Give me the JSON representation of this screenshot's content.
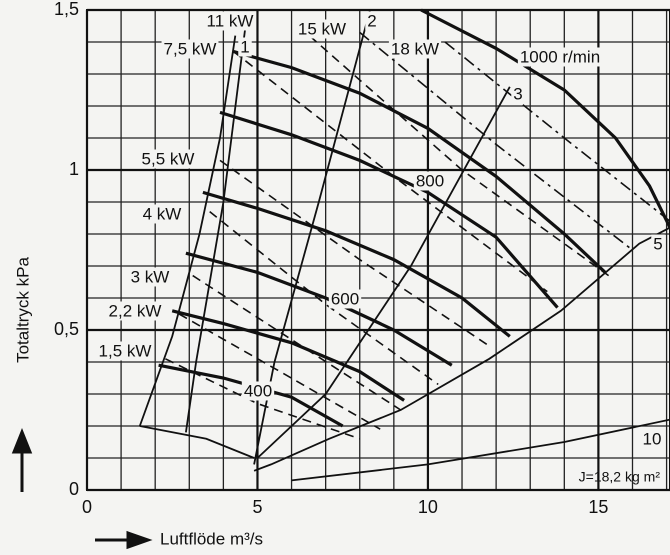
{
  "chart_data": {
    "type": "line",
    "xlabel": "Luftflöde m³/s",
    "ylabel": "Totaltryck kPa",
    "xlim": [
      0,
      17.1
    ],
    "ylim": [
      0,
      1.5
    ],
    "xticks": [
      0,
      5,
      10,
      15
    ],
    "yticks": [
      0,
      {
        "value": 0.5,
        "label": "0,5"
      },
      1,
      {
        "value": 1.5,
        "label": "1,5"
      }
    ],
    "xgrid": [
      1,
      2,
      3,
      4,
      5,
      6,
      7,
      8,
      9,
      10,
      11,
      12,
      13,
      14,
      15,
      16,
      17
    ],
    "ygrid": [
      0.1,
      0.2,
      0.3,
      0.4,
      0.5,
      0.6,
      0.7,
      0.8,
      0.9,
      1,
      1.1,
      1.2,
      1.3,
      1.4
    ],
    "annotation": "J=18,2 kg m²",
    "series": [
      {
        "label": "1000 r/min",
        "style": "thick",
        "x": [
          9.8,
          12,
          14,
          15.5,
          16.5,
          17.1
        ],
        "y": [
          1.5,
          1.38,
          1.25,
          1.1,
          0.95,
          0.82
        ]
      },
      {
        "style": "thick",
        "x": [
          4.3,
          6,
          8,
          10,
          12,
          14,
          15.2
        ],
        "y": [
          1.37,
          1.32,
          1.24,
          1.13,
          0.98,
          0.8,
          0.68
        ]
      },
      {
        "label": "800",
        "style": "thick",
        "x": [
          3.9,
          6,
          8,
          10,
          12,
          13.8
        ],
        "y": [
          1.18,
          1.11,
          1.03,
          0.93,
          0.79,
          0.57
        ]
      },
      {
        "style": "thick",
        "x": [
          3.4,
          5,
          7,
          9,
          11,
          12.4
        ],
        "y": [
          0.93,
          0.88,
          0.81,
          0.72,
          0.6,
          0.48
        ]
      },
      {
        "label": "600",
        "style": "thick",
        "x": [
          2.9,
          5,
          7,
          9,
          10.7
        ],
        "y": [
          0.74,
          0.68,
          0.6,
          0.5,
          0.39
        ]
      },
      {
        "style": "thick",
        "x": [
          2.5,
          4,
          6,
          8,
          9.3
        ],
        "y": [
          0.56,
          0.52,
          0.46,
          0.37,
          0.28
        ]
      },
      {
        "label": "400",
        "style": "thick",
        "x": [
          2.1,
          4,
          6,
          7.5
        ],
        "y": [
          0.39,
          0.35,
          0.29,
          0.2
        ]
      },
      {
        "style": "thin",
        "x": [
          1.55,
          2.5,
          3.3,
          3.9,
          4.35
        ],
        "y": [
          0.2,
          0.48,
          0.8,
          1.1,
          1.42
        ]
      },
      {
        "style": "thin",
        "x": [
          1.55,
          3.5,
          4.9
        ],
        "y": [
          0.2,
          0.16,
          0.1
        ]
      },
      {
        "label": "1",
        "style": "thin",
        "x": [
          4.65,
          4,
          3.2,
          2.9
        ],
        "y": [
          1.45,
          0.9,
          0.4,
          0.18
        ]
      },
      {
        "label": "2",
        "style": "thin",
        "x": [
          8.3,
          6.8,
          5.5,
          4.9
        ],
        "y": [
          1.5,
          0.9,
          0.4,
          0.08
        ]
      },
      {
        "label": "3",
        "style": "thin",
        "x": [
          12.4,
          9.5,
          7,
          5
        ],
        "y": [
          1.26,
          0.7,
          0.3,
          0.1
        ]
      },
      {
        "label": "5",
        "style": "thin",
        "x": [
          17.1,
          16.2,
          13.9,
          11.8,
          9.2,
          7.1,
          5.4,
          4.9
        ],
        "y": [
          0.82,
          0.77,
          0.56,
          0.41,
          0.25,
          0.16,
          0.08,
          0.06
        ]
      },
      {
        "label": "10",
        "style": "thin",
        "x": [
          6,
          10,
          14,
          17.1
        ],
        "y": [
          0.03,
          0.08,
          0.15,
          0.22
        ]
      },
      {
        "label": "1,5 kW",
        "style": "dashed",
        "x": [
          2.3,
          5,
          8
        ],
        "y": [
          0.41,
          0.27,
          0.16
        ]
      },
      {
        "label": "2,2 kW",
        "style": "dashed",
        "x": [
          2.7,
          5.5,
          8.6
        ],
        "y": [
          0.55,
          0.38,
          0.19
        ]
      },
      {
        "label": "3 kW",
        "style": "dashed",
        "x": [
          3.1,
          6,
          9.2
        ],
        "y": [
          0.67,
          0.47,
          0.25
        ]
      },
      {
        "label": "4 kW",
        "style": "dashed",
        "x": [
          3.6,
          7,
          10.3
        ],
        "y": [
          0.87,
          0.58,
          0.33
        ]
      },
      {
        "label": "5,5 kW",
        "style": "dashed",
        "x": [
          3.9,
          8,
          11.8
        ],
        "y": [
          1.03,
          0.72,
          0.45
        ]
      },
      {
        "label": "7,5 kW",
        "style": "dashed",
        "x": [
          4.3,
          9,
          13.5
        ],
        "y": [
          1.37,
          0.98,
          0.62
        ]
      },
      {
        "label": "11 kW",
        "style": "dashed",
        "x": [
          6.2,
          11,
          15.3
        ],
        "y": [
          1.45,
          1,
          0.67
        ]
      },
      {
        "label": "15 kW",
        "style": "dashdot",
        "x": [
          8,
          12,
          16
        ],
        "y": [
          1.43,
          1.08,
          0.75
        ]
      },
      {
        "label": "18 kW",
        "style": "dashdot",
        "x": [
          10.5,
          14,
          17.1
        ],
        "y": [
          1.4,
          1.1,
          0.84
        ]
      }
    ]
  }
}
